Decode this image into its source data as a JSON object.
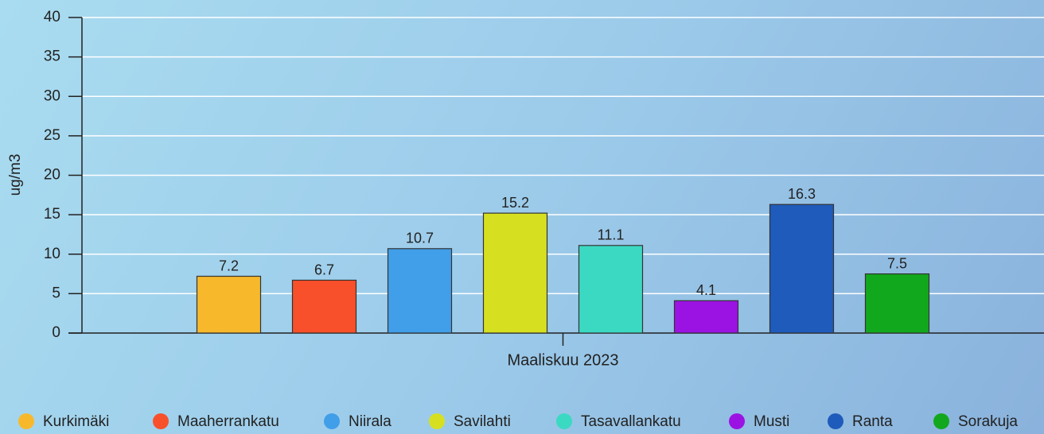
{
  "chart_data": {
    "type": "bar",
    "y_label": "ug/m3",
    "categories": [
      "Maaliskuu 2023"
    ],
    "series": [
      {
        "name": "Kurkimäki",
        "color": "#f7b92b",
        "values": [
          7.2
        ]
      },
      {
        "name": "Maaherrankatu",
        "color": "#f8502a",
        "values": [
          6.7
        ]
      },
      {
        "name": "Niirala",
        "color": "#419ee8",
        "values": [
          10.7
        ]
      },
      {
        "name": "Savilahti",
        "color": "#d6e021",
        "values": [
          15.2
        ]
      },
      {
        "name": "Tasavallankatu",
        "color": "#3cd9c2",
        "values": [
          11.1
        ]
      },
      {
        "name": "Musti",
        "color": "#9b13e3",
        "values": [
          4.1
        ]
      },
      {
        "name": "Ranta",
        "color": "#1f5bbb",
        "values": [
          16.3
        ]
      },
      {
        "name": "Sorakuja",
        "color": "#12a81d",
        "values": [
          7.5
        ]
      }
    ],
    "ylim": [
      0,
      40
    ],
    "yticks": [
      0,
      5,
      10,
      15,
      20,
      25,
      30,
      35,
      40
    ],
    "grid": true,
    "legend": "bottom"
  }
}
